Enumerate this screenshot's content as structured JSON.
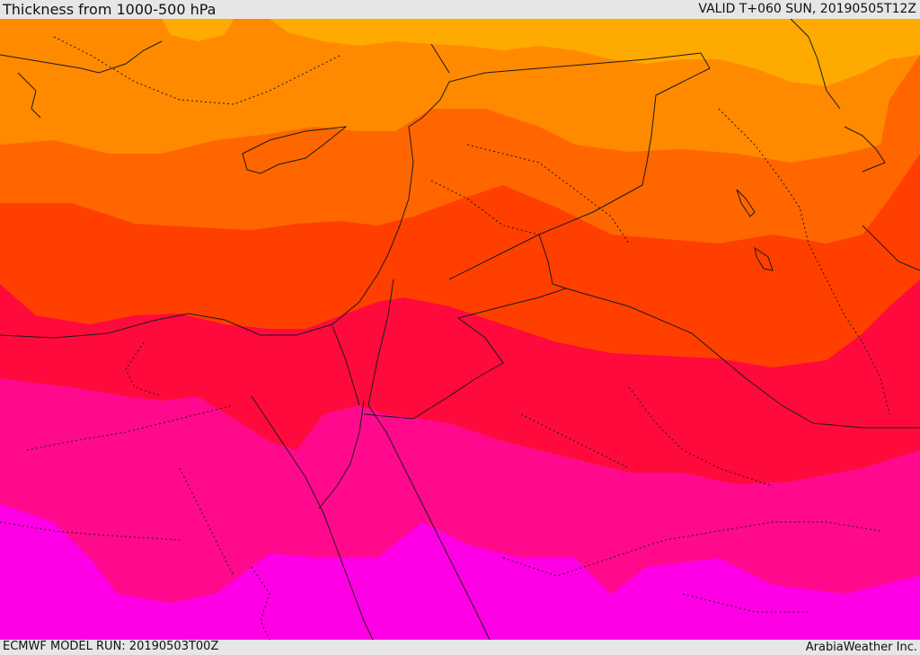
{
  "header": {
    "title": "Thickness from 1000-500 hPa",
    "valid": "VALID T+060 SUN, 20190505T12Z"
  },
  "footer": {
    "model_run": "ECMWF MODEL RUN: 20190503T00Z",
    "brand": "ArabiaWeather Inc."
  },
  "map": {
    "field": "1000-500 hPa thickness",
    "colors": {
      "band_1": "#ffaa00",
      "band_2": "#ff8a00",
      "band_3": "#ff6600",
      "band_4": "#ff3f00",
      "band_5": "#ff0a3c",
      "band_6": "#ff0a8c",
      "band_7": "#ff00e6",
      "borders": "#1a1a1a"
    }
  }
}
